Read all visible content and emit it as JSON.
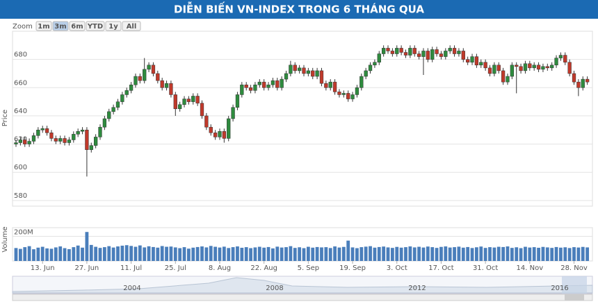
{
  "chart_data": {
    "type": "candlestick",
    "title": "DIỄN BIẾN VN-INDEX TRONG 6 THÁNG QUA",
    "y_label": "Price",
    "categories": [
      null,
      null,
      null,
      null,
      null,
      null,
      "13. Jun",
      null,
      null,
      null,
      null,
      null,
      null,
      null,
      null,
      null,
      "27. Jun",
      null,
      null,
      null,
      null,
      null,
      null,
      null,
      null,
      null,
      "11. Jul",
      null,
      null,
      null,
      null,
      null,
      null,
      null,
      null,
      null,
      "25. Jul",
      null,
      null,
      null,
      null,
      null,
      null,
      null,
      null,
      null,
      "8. Aug",
      null,
      null,
      null,
      null,
      null,
      null,
      null,
      null,
      null,
      "22. Aug",
      null,
      null,
      null,
      null,
      null,
      null,
      null,
      null,
      null,
      "5. Sep",
      null,
      null,
      null,
      null,
      null,
      null,
      null,
      null,
      null,
      "19. Sep",
      null,
      null,
      null,
      null,
      null,
      null,
      null,
      null,
      null,
      "3. Oct",
      null,
      null,
      null,
      null,
      null,
      null,
      null,
      null,
      null,
      "17. Oct",
      null,
      null,
      null,
      null,
      null,
      null,
      null,
      null,
      null,
      "31. Oct",
      null,
      null,
      null,
      null,
      null,
      null,
      null,
      null,
      null,
      "14. Nov",
      null,
      null,
      null,
      null,
      null,
      null,
      null,
      null,
      null,
      "28. Nov",
      null,
      null,
      null
    ],
    "open": [
      620,
      621,
      623,
      620,
      622,
      626,
      630,
      631,
      628,
      624,
      622,
      624,
      621,
      623,
      627,
      629,
      630,
      616,
      619,
      625,
      632,
      638,
      643,
      646,
      650,
      655,
      658,
      662,
      668,
      665,
      673,
      676,
      670,
      665,
      660,
      663,
      655,
      645,
      648,
      652,
      650,
      654,
      649,
      640,
      632,
      628,
      625,
      629,
      624,
      638,
      646,
      655,
      662,
      660,
      658,
      662,
      664,
      660,
      662,
      665,
      660,
      666,
      670,
      676,
      672,
      674,
      670,
      672,
      668,
      672,
      663,
      660,
      664,
      657,
      655,
      656,
      652,
      655,
      660,
      668,
      672,
      676,
      678,
      684,
      688,
      686,
      684,
      688,
      685,
      683,
      688,
      684,
      682,
      686,
      680,
      687,
      684,
      682,
      686,
      688,
      684,
      686,
      680,
      678,
      682,
      676,
      678,
      674,
      670,
      676,
      672,
      664,
      668,
      676,
      675,
      672,
      677,
      674,
      676,
      673,
      675,
      674,
      676,
      681,
      683,
      678,
      670,
      664,
      660,
      666
    ],
    "high": [
      623,
      625,
      625,
      624,
      628,
      632,
      633,
      633,
      630,
      626,
      626,
      626,
      625,
      629,
      631,
      632,
      632,
      621,
      627,
      634,
      640,
      645,
      648,
      652,
      657,
      660,
      664,
      670,
      670,
      681,
      678,
      678,
      672,
      667,
      665,
      665,
      657,
      650,
      654,
      654,
      656,
      656,
      651,
      642,
      634,
      630,
      631,
      631,
      640,
      648,
      657,
      664,
      664,
      662,
      664,
      666,
      666,
      664,
      667,
      667,
      668,
      672,
      679,
      678,
      676,
      676,
      674,
      674,
      674,
      674,
      665,
      666,
      666,
      659,
      658,
      658,
      657,
      662,
      670,
      674,
      678,
      680,
      686,
      690,
      690,
      688,
      690,
      690,
      687,
      690,
      690,
      686,
      688,
      688,
      689,
      689,
      686,
      688,
      690,
      690,
      688,
      688,
      682,
      684,
      684,
      680,
      680,
      676,
      678,
      678,
      674,
      670,
      678,
      678,
      677,
      679,
      679,
      678,
      678,
      677,
      677,
      678,
      683,
      685,
      685,
      680,
      672,
      666,
      668,
      668
    ],
    "low": [
      618,
      619,
      618,
      618,
      620,
      624,
      628,
      626,
      622,
      620,
      620,
      619,
      619,
      621,
      625,
      627,
      597,
      614,
      617,
      623,
      630,
      636,
      641,
      644,
      648,
      653,
      656,
      660,
      663,
      663,
      671,
      668,
      663,
      658,
      658,
      653,
      640,
      643,
      646,
      648,
      648,
      647,
      638,
      630,
      626,
      623,
      623,
      621,
      622,
      636,
      644,
      653,
      658,
      656,
      656,
      660,
      658,
      658,
      660,
      658,
      658,
      664,
      668,
      670,
      670,
      668,
      668,
      666,
      666,
      661,
      658,
      658,
      655,
      653,
      653,
      650,
      650,
      653,
      658,
      666,
      670,
      674,
      676,
      682,
      684,
      682,
      682,
      683,
      681,
      681,
      682,
      680,
      669,
      678,
      678,
      682,
      680,
      680,
      684,
      682,
      682,
      678,
      676,
      676,
      674,
      674,
      672,
      668,
      668,
      670,
      662,
      662,
      666,
      656,
      670,
      670,
      672,
      672,
      671,
      671,
      672,
      672,
      674,
      679,
      676,
      668,
      662,
      654,
      658,
      662
    ],
    "close": [
      621,
      623,
      620,
      622,
      626,
      630,
      631,
      628,
      624,
      622,
      624,
      621,
      623,
      627,
      629,
      630,
      616,
      619,
      625,
      632,
      638,
      643,
      646,
      650,
      655,
      658,
      662,
      668,
      665,
      673,
      676,
      670,
      665,
      660,
      663,
      655,
      645,
      648,
      652,
      650,
      654,
      649,
      640,
      632,
      628,
      625,
      629,
      624,
      638,
      646,
      655,
      662,
      660,
      658,
      662,
      664,
      660,
      662,
      665,
      660,
      666,
      670,
      676,
      672,
      674,
      670,
      672,
      668,
      672,
      663,
      660,
      664,
      657,
      655,
      656,
      652,
      655,
      660,
      668,
      672,
      676,
      678,
      684,
      688,
      686,
      684,
      688,
      685,
      683,
      688,
      684,
      682,
      686,
      680,
      687,
      684,
      682,
      686,
      688,
      684,
      686,
      680,
      678,
      682,
      676,
      678,
      674,
      670,
      676,
      672,
      664,
      668,
      676,
      675,
      672,
      677,
      674,
      676,
      673,
      675,
      674,
      676,
      681,
      683,
      678,
      670,
      664,
      660,
      666,
      664
    ],
    "up_color": "#2e8b3e",
    "down_color": "#c0392b",
    "ylim": [
      576,
      700
    ],
    "yticks": [
      580,
      600,
      620,
      640,
      660,
      680
    ],
    "grid": true,
    "volume": {
      "label": "Volume",
      "color": "#4a7ebb",
      "ylim": [
        0,
        270
      ],
      "yticks": [
        {
          "value": 200,
          "label": "200M"
        }
      ],
      "values": [
        105,
        98,
        112,
        120,
        95,
        108,
        115,
        102,
        99,
        110,
        118,
        104,
        96,
        112,
        125,
        108,
        235,
        130,
        115,
        106,
        112,
        120,
        109,
        118,
        124,
        128,
        122,
        115,
        126,
        110,
        119,
        113,
        108,
        121,
        115,
        117,
        110,
        104,
        112,
        100,
        108,
        113,
        118,
        110,
        122,
        115,
        109,
        116,
        105,
        112,
        118,
        107,
        112,
        104,
        110,
        115,
        108,
        113,
        102,
        116,
        109,
        112,
        120,
        106,
        111,
        104,
        115,
        108,
        113,
        110,
        112,
        105,
        118,
        109,
        114,
        165,
        110,
        104,
        112,
        116,
        120,
        108,
        113,
        117,
        110,
        106,
        114,
        108,
        112,
        118,
        110,
        115,
        109,
        117,
        112,
        106,
        114,
        118,
        109,
        112,
        116,
        108,
        113,
        105,
        111,
        117,
        106,
        112,
        109,
        115,
        113,
        118,
        106,
        111,
        104,
        115,
        109,
        112,
        107,
        114,
        110,
        106,
        113,
        108,
        111,
        105,
        112,
        109,
        114,
        110
      ]
    }
  },
  "range_selector": {
    "label": "Zoom",
    "buttons": [
      "1m",
      "3m",
      "6m",
      "YTD",
      "1y",
      "All"
    ],
    "selected": "3m"
  },
  "navigator": {
    "labels": [
      "2004",
      "2008",
      "2012",
      "2016"
    ]
  }
}
